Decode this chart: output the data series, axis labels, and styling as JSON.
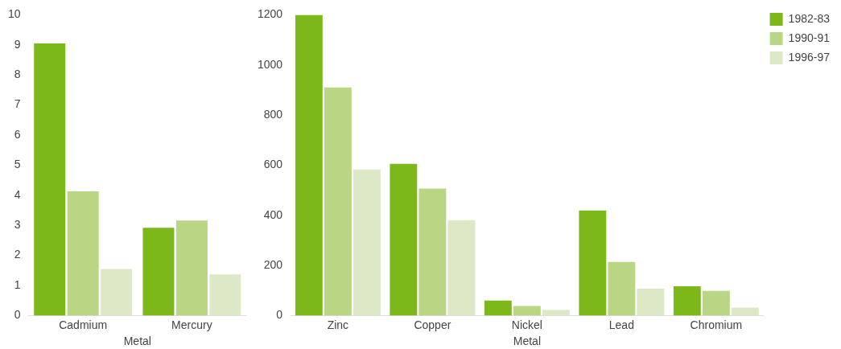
{
  "chart_data": [
    {
      "type": "bar",
      "xlabel": "Metal",
      "categories": [
        "Cadmium",
        "Mercury"
      ],
      "series": [
        {
          "color": "#7db81a",
          "values": [
            9.05,
            2.92
          ]
        },
        {
          "color": "#b8d684",
          "values": [
            4.13,
            3.16
          ]
        },
        {
          "color": "#dde9c6",
          "values": [
            1.55,
            1.37
          ]
        }
      ],
      "ylim": [
        0,
        10
      ],
      "yticks": [
        0,
        1,
        2,
        3,
        4,
        5,
        6,
        7,
        8,
        9,
        10
      ],
      "grid": false,
      "legend": false
    },
    {
      "type": "bar",
      "xlabel": "Metal",
      "categories": [
        "Zinc",
        "Copper",
        "Nickel",
        "Lead",
        "Chromium"
      ],
      "series": [
        {
          "name": "1982-83",
          "color": "#7db81a",
          "values": [
            1200,
            605,
            60,
            419,
            117
          ]
        },
        {
          "name": "1990-91",
          "color": "#b8d684",
          "values": [
            910,
            507,
            38,
            214,
            98
          ]
        },
        {
          "name": "1996-97",
          "color": "#dde9c6",
          "values": [
            583,
            381,
            22,
            107,
            32
          ]
        }
      ],
      "ylim": [
        0,
        1200
      ],
      "yticks": [
        0,
        200,
        400,
        600,
        800,
        1000,
        1200
      ],
      "grid": false,
      "legend": "top right"
    }
  ]
}
